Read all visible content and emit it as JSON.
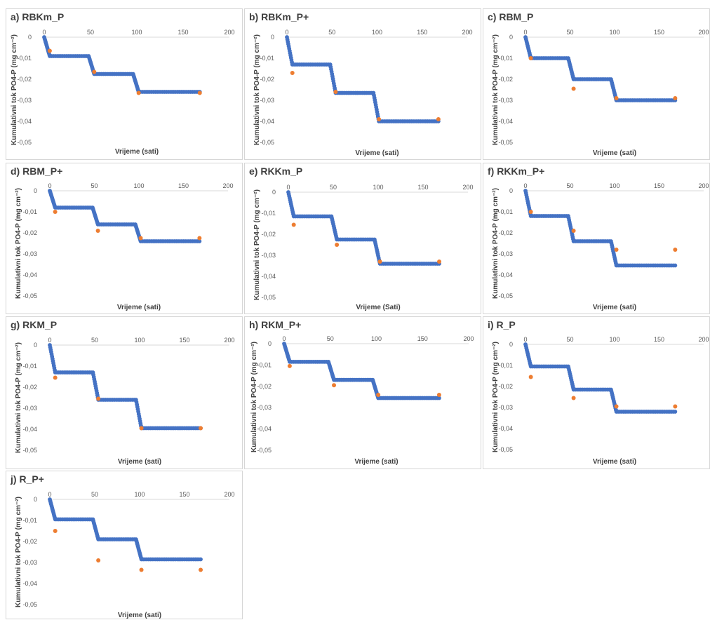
{
  "colors": {
    "model": "#4472c4",
    "measured": "#ed7d31",
    "axis": "#d9d9d9",
    "tick_text": "#595959",
    "label_text": "#404040"
  },
  "chart_data": [
    {
      "title": "a) RBKm_P",
      "type": "scatter",
      "xlabel": "Vrijeme (sati)",
      "ylabel": "Kumulativni tok PO4-P  (mg cm⁻²)",
      "xlim": [
        0,
        200
      ],
      "ylim": [
        -0.05,
        0
      ],
      "xticks": [
        0,
        50,
        100,
        150,
        200
      ],
      "yticks": [
        0,
        -0.01,
        -0.02,
        -0.03,
        -0.04,
        -0.05
      ],
      "yticklabels": [
        "0",
        "-0,01",
        "-0,02",
        "-0,03",
        "-0,04",
        "-0,05"
      ],
      "grid": false,
      "legend": "none",
      "series": [
        {
          "kind": "model",
          "steps": [
            [
              0,
              6,
              48,
              54,
              96,
              102,
              168
            ],
            [
              0,
              -0.009,
              -0.009,
              -0.0175,
              -0.0175,
              -0.026,
              -0.026
            ]
          ]
        },
        {
          "kind": "measured",
          "x": [
            6,
            54,
            102,
            168
          ],
          "y": [
            -0.0065,
            -0.0165,
            -0.0265,
            -0.0265
          ]
        }
      ]
    },
    {
      "title": "b) RBKm_P+",
      "type": "scatter",
      "xlabel": "Vrijeme (sati)",
      "ylabel": "Kumulativni tok PO4-P  (mg cm⁻²)",
      "xlim": [
        0,
        200
      ],
      "ylim": [
        -0.05,
        0
      ],
      "xticks": [
        0,
        50,
        100,
        150,
        200
      ],
      "yticks": [
        0,
        -0.01,
        -0.02,
        -0.03,
        -0.04,
        -0.05
      ],
      "yticklabels": [
        "0",
        "-0,01",
        "-0,02",
        "-0,03",
        "-0,04",
        "-0,05"
      ],
      "grid": false,
      "legend": "none",
      "series": [
        {
          "kind": "model",
          "steps": [
            [
              0,
              6,
              48,
              54,
              96,
              102,
              168
            ],
            [
              0,
              -0.013,
              -0.013,
              -0.0265,
              -0.0265,
              -0.04,
              -0.04
            ]
          ]
        },
        {
          "kind": "measured",
          "x": [
            6,
            54,
            102,
            168
          ],
          "y": [
            -0.017,
            -0.026,
            -0.039,
            -0.039
          ]
        }
      ]
    },
    {
      "title": "c) RBM_P",
      "type": "scatter",
      "xlabel": "Vrijeme (sati)",
      "ylabel": "Kumulativni tok PO4-P  (mg cm⁻²)",
      "xlim": [
        0,
        200
      ],
      "ylim": [
        -0.05,
        0
      ],
      "xticks": [
        0,
        50,
        100,
        150,
        200
      ],
      "yticks": [
        0,
        -0.01,
        -0.02,
        -0.03,
        -0.04,
        -0.05
      ],
      "yticklabels": [
        "0",
        "-0,01",
        "-0,02",
        "-0,03",
        "-0,04",
        "-0,05"
      ],
      "grid": false,
      "legend": "none",
      "series": [
        {
          "kind": "model",
          "steps": [
            [
              0,
              6,
              48,
              54,
              96,
              102,
              168
            ],
            [
              0,
              -0.01,
              -0.01,
              -0.02,
              -0.02,
              -0.03,
              -0.03
            ]
          ]
        },
        {
          "kind": "measured",
          "x": [
            6,
            54,
            102,
            168
          ],
          "y": [
            -0.01,
            -0.0245,
            -0.029,
            -0.029
          ]
        }
      ]
    },
    {
      "title": "d) RBM_P+",
      "type": "scatter",
      "xlabel": "Vrijeme (sati)",
      "ylabel": "Kumulativni tok PO4-P  (mg cm⁻²)",
      "xlim": [
        0,
        200
      ],
      "ylim": [
        -0.05,
        0
      ],
      "xticks": [
        0,
        50,
        100,
        150,
        200
      ],
      "yticks": [
        0,
        -0.01,
        -0.02,
        -0.03,
        -0.04,
        -0.05
      ],
      "yticklabels": [
        "0",
        "-0,01",
        "-0,02",
        "-0,03",
        "-0,04",
        "-0,05"
      ],
      "grid": false,
      "legend": "none",
      "series": [
        {
          "kind": "model",
          "steps": [
            [
              0,
              6,
              48,
              54,
              96,
              102,
              168
            ],
            [
              0,
              -0.008,
              -0.008,
              -0.016,
              -0.016,
              -0.024,
              -0.024
            ]
          ]
        },
        {
          "kind": "measured",
          "x": [
            6,
            54,
            102,
            168
          ],
          "y": [
            -0.01,
            -0.019,
            -0.0225,
            -0.0225
          ]
        }
      ]
    },
    {
      "title": "e) RKKm_P",
      "type": "scatter",
      "xlabel": "Vrijeme (Sati)",
      "ylabel": "Kumulativni tok PO4-P  (mg cm⁻²)",
      "xlim": [
        0,
        200
      ],
      "ylim": [
        -0.05,
        0
      ],
      "xticks": [
        0,
        50,
        100,
        150,
        200
      ],
      "yticks": [
        0,
        -0.01,
        -0.02,
        -0.03,
        -0.04,
        -0.05
      ],
      "yticklabels": [
        "0",
        "-0,01",
        "-0,02",
        "-0,03",
        "-0,04",
        "-0,05"
      ],
      "grid": false,
      "legend": "none",
      "series": [
        {
          "kind": "model",
          "steps": [
            [
              0,
              6,
              48,
              54,
              96,
              102,
              168
            ],
            [
              0,
              -0.0115,
              -0.0115,
              -0.0225,
              -0.0225,
              -0.034,
              -0.034
            ]
          ]
        },
        {
          "kind": "measured",
          "x": [
            6,
            54,
            102,
            168
          ],
          "y": [
            -0.0155,
            -0.025,
            -0.033,
            -0.033
          ]
        }
      ]
    },
    {
      "title": "f) RKKm_P+",
      "type": "scatter",
      "xlabel": "Vrijeme (sati)",
      "ylabel": "Kumulativni tok PO4-P  (mg cm⁻²)",
      "xlim": [
        0,
        200
      ],
      "ylim": [
        -0.05,
        0
      ],
      "xticks": [
        0,
        50,
        100,
        150,
        200
      ],
      "yticks": [
        0,
        -0.01,
        -0.02,
        -0.03,
        -0.04,
        -0.05
      ],
      "yticklabels": [
        "0",
        "-0,01",
        "-0,02",
        "-0,03",
        "-0,04",
        "-0,05"
      ],
      "grid": false,
      "legend": "none",
      "series": [
        {
          "kind": "model",
          "steps": [
            [
              0,
              6,
              48,
              54,
              96,
              102,
              168
            ],
            [
              0,
              -0.012,
              -0.012,
              -0.024,
              -0.024,
              -0.0355,
              -0.0355
            ]
          ]
        },
        {
          "kind": "measured",
          "x": [
            6,
            54,
            102,
            168
          ],
          "y": [
            -0.01,
            -0.019,
            -0.028,
            -0.028
          ]
        }
      ]
    },
    {
      "title": "g) RKM_P",
      "type": "scatter",
      "xlabel": "Vrijeme (sati)",
      "ylabel": "Kumulativni tok PO4-P  (mg cm⁻²)",
      "xlim": [
        0,
        200
      ],
      "ylim": [
        -0.05,
        0
      ],
      "xticks": [
        0,
        50,
        100,
        150,
        200
      ],
      "yticks": [
        0,
        -0.01,
        -0.02,
        -0.03,
        -0.04,
        -0.05
      ],
      "yticklabels": [
        "0",
        "-0,01",
        "-0,02",
        "-0,03",
        "-0,04",
        "-0,05"
      ],
      "grid": false,
      "legend": "none",
      "series": [
        {
          "kind": "model",
          "steps": [
            [
              0,
              6,
              48,
              54,
              96,
              102,
              168
            ],
            [
              0,
              -0.013,
              -0.013,
              -0.026,
              -0.026,
              -0.0395,
              -0.0395
            ]
          ]
        },
        {
          "kind": "measured",
          "x": [
            6,
            54,
            102,
            168
          ],
          "y": [
            -0.0155,
            -0.0255,
            -0.0395,
            -0.0395
          ]
        }
      ]
    },
    {
      "title": "h) RKM_P+",
      "type": "scatter",
      "xlabel": "Vrijeme (sati)",
      "ylabel": "Kumulativni tok PO4-P  (mg cm⁻²)",
      "xlim": [
        0,
        200
      ],
      "ylim": [
        -0.05,
        0
      ],
      "xticks": [
        0,
        50,
        100,
        150,
        200
      ],
      "yticks": [
        0,
        -0.01,
        -0.02,
        -0.03,
        -0.04,
        -0.05
      ],
      "yticklabels": [
        "0",
        "-0,01",
        "-0,02",
        "-0,03",
        "-0,04",
        "-0,05"
      ],
      "grid": false,
      "legend": "none",
      "series": [
        {
          "kind": "model",
          "steps": [
            [
              0,
              6,
              48,
              54,
              96,
              102,
              168
            ],
            [
              0,
              -0.0085,
              -0.0085,
              -0.017,
              -0.017,
              -0.0255,
              -0.0255
            ]
          ]
        },
        {
          "kind": "measured",
          "x": [
            6,
            54,
            102,
            168
          ],
          "y": [
            -0.0105,
            -0.0195,
            -0.024,
            -0.024
          ]
        }
      ]
    },
    {
      "title": "i) R_P",
      "type": "scatter",
      "xlabel": "Vrijeme (sati)",
      "ylabel": "Kumulativni tok PO4-P  (mg cm⁻²)",
      "xlim": [
        0,
        200
      ],
      "ylim": [
        -0.05,
        0
      ],
      "xticks": [
        0,
        50,
        100,
        150,
        200
      ],
      "yticks": [
        0,
        -0.01,
        -0.02,
        -0.03,
        -0.04,
        -0.05
      ],
      "yticklabels": [
        "0",
        "-0,01",
        "-0,02",
        "-0,03",
        "-0,04",
        "-0,05"
      ],
      "grid": false,
      "legend": "none",
      "series": [
        {
          "kind": "model",
          "steps": [
            [
              0,
              6,
              48,
              54,
              96,
              102,
              168
            ],
            [
              0,
              -0.0105,
              -0.0105,
              -0.0215,
              -0.0215,
              -0.032,
              -0.032
            ]
          ]
        },
        {
          "kind": "measured",
          "x": [
            6,
            54,
            102,
            168
          ],
          "y": [
            -0.0155,
            -0.0255,
            -0.0295,
            -0.0295
          ]
        }
      ]
    },
    {
      "title": "j) R_P+",
      "type": "scatter",
      "xlabel": "Vrijeme (sati)",
      "ylabel": "Kumulativni tok PO4-P  (mg cm⁻²)",
      "xlim": [
        0,
        200
      ],
      "ylim": [
        -0.05,
        0
      ],
      "xticks": [
        0,
        50,
        100,
        150,
        200
      ],
      "yticks": [
        0,
        -0.01,
        -0.02,
        -0.03,
        -0.04,
        -0.05
      ],
      "yticklabels": [
        "0",
        "-0,01",
        "-0,02",
        "-0,03",
        "-0,04",
        "-0,05"
      ],
      "grid": false,
      "legend": "none",
      "series": [
        {
          "kind": "model",
          "steps": [
            [
              0,
              6,
              48,
              54,
              96,
              102,
              168
            ],
            [
              0,
              -0.0095,
              -0.0095,
              -0.019,
              -0.019,
              -0.0285,
              -0.0285
            ]
          ]
        },
        {
          "kind": "measured",
          "x": [
            6,
            54,
            102,
            168
          ],
          "y": [
            -0.015,
            -0.029,
            -0.0335,
            -0.0335
          ]
        }
      ]
    }
  ]
}
